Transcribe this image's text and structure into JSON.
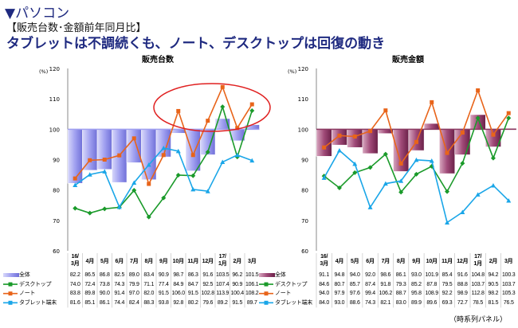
{
  "header": {
    "section": "▼パソコン",
    "subtitle": "【販売台数･金額前年同月比】",
    "headline": "タブレットは不調続くも、ノート、デスクトップは回復の動き"
  },
  "footnote": "（時系列パネル）",
  "colors": {
    "total_units": "#a0a0f0",
    "total_value": "#8b3a62",
    "desktop": "#1a9a2a",
    "note": "#e8641a",
    "tablet": "#1aa6e8",
    "highlight": "#e02020"
  },
  "chart_data": [
    {
      "type": "bar+line",
      "title": "販売台数",
      "ylabel": "(%)",
      "ylim": [
        60,
        120
      ],
      "yticks": [
        60,
        70,
        80,
        90,
        100,
        110,
        120
      ],
      "bar_baseline": 100,
      "categories": [
        "16/\n3月",
        "4月",
        "5月",
        "6月",
        "7月",
        "8月",
        "9月",
        "10月",
        "11月",
        "12月",
        "17/\n1月",
        "2月",
        "3月"
      ],
      "series": [
        {
          "name": "全体",
          "kind": "bar",
          "values": [
            82.2,
            86.5,
            86.8,
            82.5,
            89.0,
            83.4,
            90.9,
            98.7,
            86.3,
            91.6,
            103.5,
            96.2,
            101.5
          ]
        },
        {
          "name": "デスクトップ",
          "kind": "line",
          "marker": "diamond",
          "values": [
            74.0,
            72.4,
            73.8,
            74.3,
            79.9,
            71.1,
            77.4,
            84.9,
            84.7,
            92.5,
            107.4,
            90.9,
            106.1
          ]
        },
        {
          "name": "ノート",
          "kind": "line",
          "marker": "square",
          "values": [
            83.8,
            89.8,
            90.0,
            91.4,
            97.0,
            82.0,
            91.5,
            106.0,
            91.5,
            102.8,
            113.9,
            100.4,
            108.2
          ]
        },
        {
          "name": "タブレット端末",
          "kind": "line",
          "marker": "triangle",
          "values": [
            81.6,
            85.1,
            86.1,
            74.4,
            82.4,
            88.3,
            93.8,
            92.8,
            80.2,
            79.6,
            89.2,
            91.5,
            89.7
          ]
        }
      ]
    },
    {
      "type": "bar+line",
      "title": "販売金額",
      "ylabel": "(%)",
      "ylim": [
        60,
        120
      ],
      "yticks": [
        60,
        70,
        80,
        90,
        100,
        110,
        120
      ],
      "bar_baseline": 100,
      "categories": [
        "16/\n3月",
        "4月",
        "5月",
        "6月",
        "7月",
        "8月",
        "9月",
        "10月",
        "11月",
        "12月",
        "17/\n1月",
        "2月",
        "3月"
      ],
      "series": [
        {
          "name": "全体",
          "kind": "bar",
          "values": [
            91.1,
            94.8,
            94.0,
            92.0,
            98.6,
            86.1,
            93.0,
            101.9,
            85.4,
            91.6,
            104.8,
            94.2,
            100.3
          ]
        },
        {
          "name": "デスクトップ",
          "kind": "line",
          "marker": "diamond",
          "values": [
            84.6,
            80.7,
            85.7,
            87.4,
            91.8,
            79.3,
            85.2,
            87.8,
            79.5,
            88.8,
            103.7,
            90.5,
            103.7
          ]
        },
        {
          "name": "ノート",
          "kind": "line",
          "marker": "square",
          "values": [
            94.0,
            97.9,
            97.6,
            99.4,
            106.2,
            88.7,
            95.8,
            108.9,
            92.2,
            98.9,
            112.8,
            98.2,
            105.3
          ]
        },
        {
          "name": "タブレット端末",
          "kind": "line",
          "marker": "triangle",
          "values": [
            84.0,
            93.0,
            88.6,
            74.3,
            82.1,
            83.0,
            89.9,
            89.6,
            69.3,
            72.7,
            78.5,
            81.5,
            76.5
          ]
        }
      ]
    }
  ]
}
